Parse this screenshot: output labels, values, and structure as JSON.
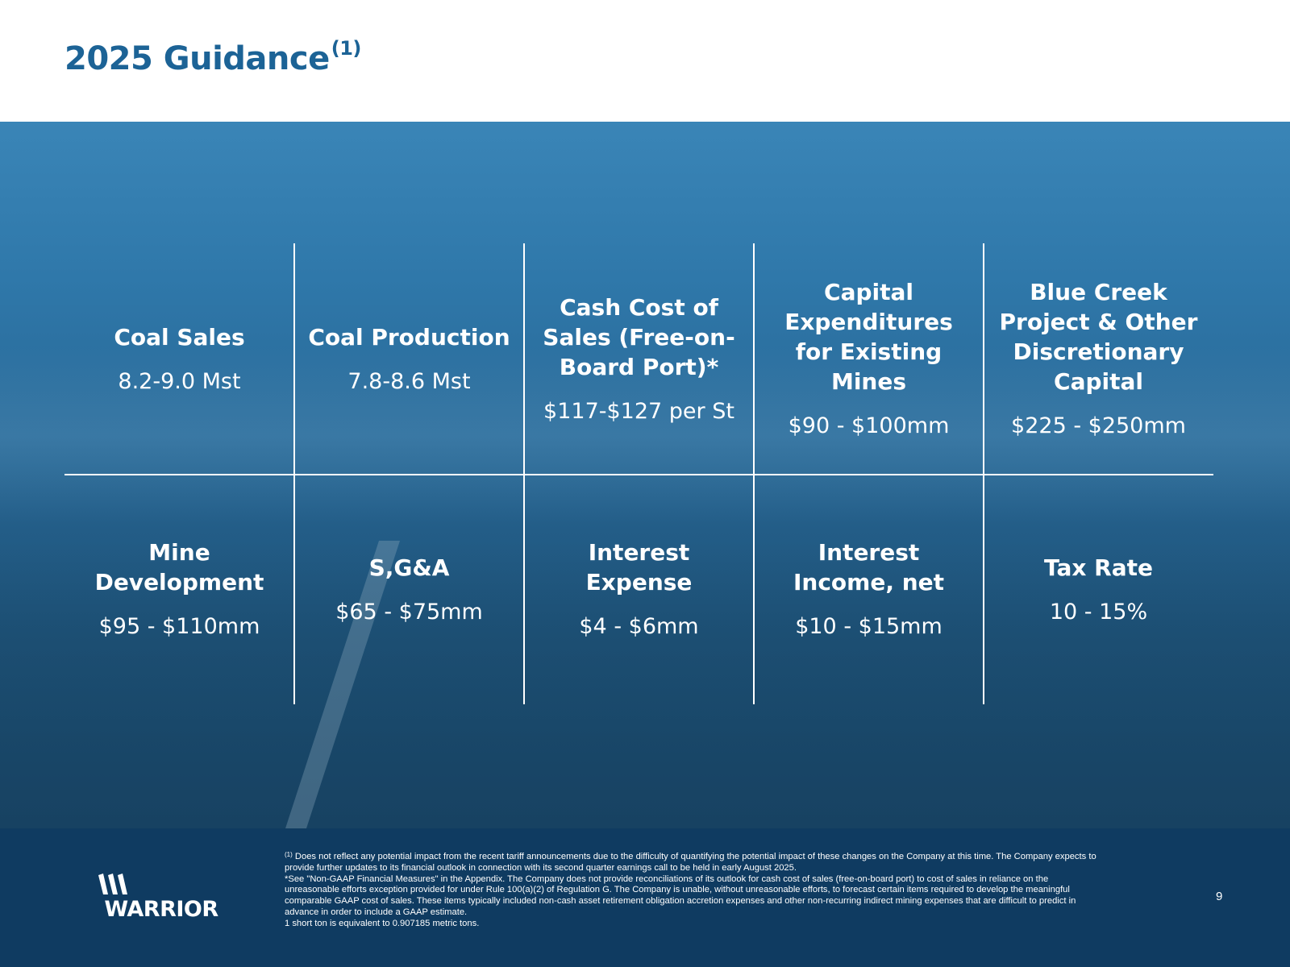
{
  "header": {
    "title": "2025 Guidance",
    "title_superscript": "(1)"
  },
  "guidance": {
    "row1": [
      {
        "label": "Coal Sales",
        "value": "8.2-9.0 Mst"
      },
      {
        "label": "Coal Production",
        "value": "7.8-8.6 Mst"
      },
      {
        "label": "Cash Cost of Sales (Free-on-Board Port)*",
        "value": "$117-$127 per St"
      },
      {
        "label": "Capital Expenditures for Existing Mines",
        "value": "$90 - $100mm"
      },
      {
        "label": "Blue Creek Project & Other Discretionary Capital",
        "value": "$225 - $250mm"
      }
    ],
    "row2": [
      {
        "label": "Mine Development",
        "value": "$95 - $110mm"
      },
      {
        "label": "S,G&A",
        "value": "$65 - $75mm"
      },
      {
        "label": "Interest Expense",
        "value": "$4 - $6mm"
      },
      {
        "label": "Interest Income, net",
        "value": "$10 - $15mm"
      },
      {
        "label": "Tax Rate",
        "value": "10 - 15%"
      }
    ]
  },
  "footer": {
    "logo_text": "WARRIOR",
    "note1_marker": "(1)",
    "note1": "Does not reflect any potential impact from the recent tariff announcements due to the difficulty of quantifying the potential impact of these changes on the Company at this time.  The Company expects to provide further updates to its financial outlook in connection with its second quarter earnings call to be held in early August 2025.",
    "note2": "*See \"Non-GAAP Financial Measures\" in the Appendix. The Company does not provide reconciliations of its outlook for cash cost of sales (free-on-board port) to cost of sales in reliance on the unreasonable efforts exception provided for under Rule 100(a)(2) of Regulation G.  The Company is unable, without unreasonable efforts, to forecast certain items required to develop the meaningful comparable GAAP cost of sales.  These items typically included non-cash asset retirement obligation accretion expenses and other non-recurring indirect mining expenses that are difficult to predict in advance in order to include a GAAP estimate.",
    "note3": "1 short ton is equivalent to 0.907185 metric tons.",
    "page_number": "9"
  },
  "colors": {
    "title_blue": "#1c6396",
    "footer_navy": "#0f3b61",
    "hero_blue": "#2a6c9b"
  }
}
